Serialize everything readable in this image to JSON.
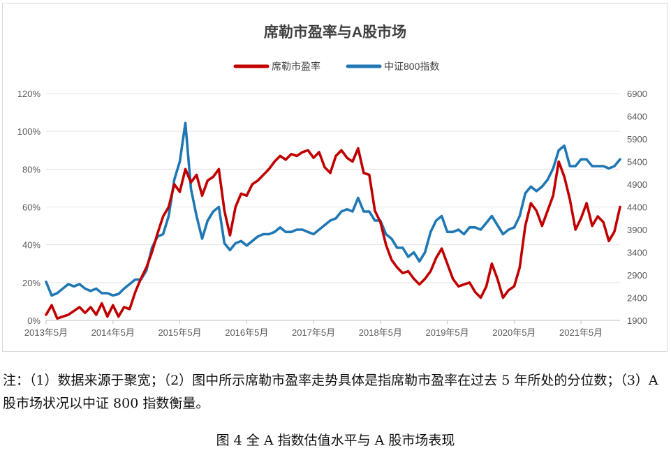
{
  "chart_data": {
    "type": "line",
    "title": "席勒市盈率与A股市场",
    "legend_position": "top-center",
    "grid": "horizontal",
    "x_tick_labels": [
      "2013年5月",
      "2014年5月",
      "2015年5月",
      "2016年5月",
      "2017年5月",
      "2018年5月",
      "2019年5月",
      "2020年5月",
      "2021年5月"
    ],
    "x_range": [
      "2013-05",
      "2021-12"
    ],
    "y_left": {
      "ticks": [
        "0%",
        "20%",
        "40%",
        "60%",
        "80%",
        "100%",
        "120%"
      ],
      "range": [
        0,
        120
      ]
    },
    "y_right": {
      "ticks": [
        "1900",
        "2400",
        "2900",
        "3400",
        "3900",
        "4400",
        "4900",
        "5400",
        "5900",
        "6400",
        "6900"
      ],
      "range": [
        1900,
        6900
      ]
    },
    "series": [
      {
        "name": "席勒市盈率",
        "axis": "left",
        "color": "#c00000",
        "points": [
          [
            "2013-05",
            3
          ],
          [
            "2013-06",
            8
          ],
          [
            "2013-07",
            1
          ],
          [
            "2013-08",
            2
          ],
          [
            "2013-09",
            3
          ],
          [
            "2013-10",
            5
          ],
          [
            "2013-11",
            7
          ],
          [
            "2013-12",
            4
          ],
          [
            "2014-01",
            7
          ],
          [
            "2014-02",
            3
          ],
          [
            "2014-03",
            9
          ],
          [
            "2014-04",
            2
          ],
          [
            "2014-05",
            8
          ],
          [
            "2014-06",
            2
          ],
          [
            "2014-07",
            7
          ],
          [
            "2014-08",
            6
          ],
          [
            "2014-09",
            15
          ],
          [
            "2014-10",
            22
          ],
          [
            "2014-11",
            28
          ],
          [
            "2014-12",
            36
          ],
          [
            "2015-01",
            46
          ],
          [
            "2015-02",
            55
          ],
          [
            "2015-03",
            60
          ],
          [
            "2015-04",
            72
          ],
          [
            "2015-05",
            68
          ],
          [
            "2015-06",
            80
          ],
          [
            "2015-07",
            73
          ],
          [
            "2015-08",
            77
          ],
          [
            "2015-09",
            66
          ],
          [
            "2015-10",
            74
          ],
          [
            "2015-11",
            76
          ],
          [
            "2015-12",
            80
          ],
          [
            "2016-01",
            58
          ],
          [
            "2016-02",
            45
          ],
          [
            "2016-03",
            60
          ],
          [
            "2016-04",
            67
          ],
          [
            "2016-05",
            66
          ],
          [
            "2016-06",
            72
          ],
          [
            "2016-07",
            74
          ],
          [
            "2016-08",
            77
          ],
          [
            "2016-09",
            80
          ],
          [
            "2016-10",
            84
          ],
          [
            "2016-11",
            87
          ],
          [
            "2016-12",
            85
          ],
          [
            "2017-01",
            88
          ],
          [
            "2017-02",
            87
          ],
          [
            "2017-03",
            89
          ],
          [
            "2017-04",
            90
          ],
          [
            "2017-05",
            86
          ],
          [
            "2017-06",
            89
          ],
          [
            "2017-07",
            81
          ],
          [
            "2017-08",
            78
          ],
          [
            "2017-09",
            87
          ],
          [
            "2017-10",
            90
          ],
          [
            "2017-11",
            86
          ],
          [
            "2017-12",
            84
          ],
          [
            "2018-01",
            91
          ],
          [
            "2018-02",
            78
          ],
          [
            "2018-03",
            77
          ],
          [
            "2018-04",
            58
          ],
          [
            "2018-05",
            52
          ],
          [
            "2018-06",
            40
          ],
          [
            "2018-07",
            32
          ],
          [
            "2018-08",
            28
          ],
          [
            "2018-09",
            25
          ],
          [
            "2018-10",
            26
          ],
          [
            "2018-11",
            22
          ],
          [
            "2018-12",
            19
          ],
          [
            "2019-01",
            22
          ],
          [
            "2019-02",
            26
          ],
          [
            "2019-03",
            33
          ],
          [
            "2019-04",
            38
          ],
          [
            "2019-05",
            30
          ],
          [
            "2019-06",
            22
          ],
          [
            "2019-07",
            18
          ],
          [
            "2019-08",
            19
          ],
          [
            "2019-09",
            20
          ],
          [
            "2019-10",
            15
          ],
          [
            "2019-11",
            12
          ],
          [
            "2019-12",
            18
          ],
          [
            "2020-01",
            30
          ],
          [
            "2020-02",
            22
          ],
          [
            "2020-03",
            12
          ],
          [
            "2020-04",
            16
          ],
          [
            "2020-05",
            18
          ],
          [
            "2020-06",
            28
          ],
          [
            "2020-07",
            50
          ],
          [
            "2020-08",
            62
          ],
          [
            "2020-09",
            58
          ],
          [
            "2020-10",
            50
          ],
          [
            "2020-11",
            58
          ],
          [
            "2020-12",
            66
          ],
          [
            "2021-01",
            84
          ],
          [
            "2021-02",
            76
          ],
          [
            "2021-03",
            64
          ],
          [
            "2021-04",
            48
          ],
          [
            "2021-05",
            54
          ],
          [
            "2021-06",
            62
          ],
          [
            "2021-07",
            50
          ],
          [
            "2021-08",
            55
          ],
          [
            "2021-09",
            52
          ],
          [
            "2021-10",
            42
          ],
          [
            "2021-11",
            47
          ],
          [
            "2021-12",
            60
          ]
        ]
      },
      {
        "name": "中证800指数",
        "axis": "right",
        "color": "#1f77b4",
        "points": [
          [
            "2013-05",
            2750
          ],
          [
            "2013-06",
            2450
          ],
          [
            "2013-07",
            2500
          ],
          [
            "2013-08",
            2600
          ],
          [
            "2013-09",
            2700
          ],
          [
            "2013-10",
            2650
          ],
          [
            "2013-11",
            2700
          ],
          [
            "2013-12",
            2600
          ],
          [
            "2014-01",
            2550
          ],
          [
            "2014-02",
            2600
          ],
          [
            "2014-03",
            2500
          ],
          [
            "2014-04",
            2500
          ],
          [
            "2014-05",
            2450
          ],
          [
            "2014-06",
            2480
          ],
          [
            "2014-07",
            2600
          ],
          [
            "2014-08",
            2700
          ],
          [
            "2014-09",
            2800
          ],
          [
            "2014-10",
            2800
          ],
          [
            "2014-11",
            3000
          ],
          [
            "2014-12",
            3500
          ],
          [
            "2015-01",
            3750
          ],
          [
            "2015-02",
            3800
          ],
          [
            "2015-03",
            4200
          ],
          [
            "2015-04",
            5000
          ],
          [
            "2015-05",
            5400
          ],
          [
            "2015-06",
            6250
          ],
          [
            "2015-07",
            4800
          ],
          [
            "2015-08",
            4200
          ],
          [
            "2015-09",
            3700
          ],
          [
            "2015-10",
            4100
          ],
          [
            "2015-11",
            4300
          ],
          [
            "2015-12",
            4400
          ],
          [
            "2016-01",
            3600
          ],
          [
            "2016-02",
            3450
          ],
          [
            "2016-03",
            3600
          ],
          [
            "2016-04",
            3650
          ],
          [
            "2016-05",
            3550
          ],
          [
            "2016-06",
            3650
          ],
          [
            "2016-07",
            3750
          ],
          [
            "2016-08",
            3800
          ],
          [
            "2016-09",
            3800
          ],
          [
            "2016-10",
            3850
          ],
          [
            "2016-11",
            3950
          ],
          [
            "2016-12",
            3850
          ],
          [
            "2017-01",
            3850
          ],
          [
            "2017-02",
            3900
          ],
          [
            "2017-03",
            3900
          ],
          [
            "2017-04",
            3850
          ],
          [
            "2017-05",
            3800
          ],
          [
            "2017-06",
            3900
          ],
          [
            "2017-07",
            4000
          ],
          [
            "2017-08",
            4100
          ],
          [
            "2017-09",
            4150
          ],
          [
            "2017-10",
            4300
          ],
          [
            "2017-11",
            4350
          ],
          [
            "2017-12",
            4300
          ],
          [
            "2018-01",
            4600
          ],
          [
            "2018-02",
            4300
          ],
          [
            "2018-03",
            4300
          ],
          [
            "2018-04",
            4100
          ],
          [
            "2018-05",
            4100
          ],
          [
            "2018-06",
            3800
          ],
          [
            "2018-07",
            3700
          ],
          [
            "2018-08",
            3500
          ],
          [
            "2018-09",
            3500
          ],
          [
            "2018-10",
            3300
          ],
          [
            "2018-11",
            3400
          ],
          [
            "2018-12",
            3200
          ],
          [
            "2019-01",
            3400
          ],
          [
            "2019-02",
            3850
          ],
          [
            "2019-03",
            4100
          ],
          [
            "2019-04",
            4200
          ],
          [
            "2019-05",
            3850
          ],
          [
            "2019-06",
            3850
          ],
          [
            "2019-07",
            3900
          ],
          [
            "2019-08",
            3800
          ],
          [
            "2019-09",
            3950
          ],
          [
            "2019-10",
            3950
          ],
          [
            "2019-11",
            3900
          ],
          [
            "2019-12",
            4050
          ],
          [
            "2020-01",
            4200
          ],
          [
            "2020-02",
            4000
          ],
          [
            "2020-03",
            3800
          ],
          [
            "2020-04",
            3900
          ],
          [
            "2020-05",
            3950
          ],
          [
            "2020-06",
            4200
          ],
          [
            "2020-07",
            4700
          ],
          [
            "2020-08",
            4850
          ],
          [
            "2020-09",
            4750
          ],
          [
            "2020-10",
            4850
          ],
          [
            "2020-11",
            5000
          ],
          [
            "2020-12",
            5250
          ],
          [
            "2021-01",
            5650
          ],
          [
            "2021-02",
            5750
          ],
          [
            "2021-03",
            5300
          ],
          [
            "2021-04",
            5300
          ],
          [
            "2021-05",
            5450
          ],
          [
            "2021-06",
            5450
          ],
          [
            "2021-07",
            5300
          ],
          [
            "2021-08",
            5300
          ],
          [
            "2021-09",
            5300
          ],
          [
            "2021-10",
            5250
          ],
          [
            "2021-11",
            5300
          ],
          [
            "2021-12",
            5450
          ]
        ]
      }
    ]
  },
  "note": "注：（1）数据来源于聚宽；（2）图中所示席勒市盈率走势具体是指席勒市盈率在过去 5 年所处的分位数；（3）A 股市场状况以中证 800 指数衡量。",
  "caption": "图 4  全 A 指数估值水平与 A 股市场表现"
}
